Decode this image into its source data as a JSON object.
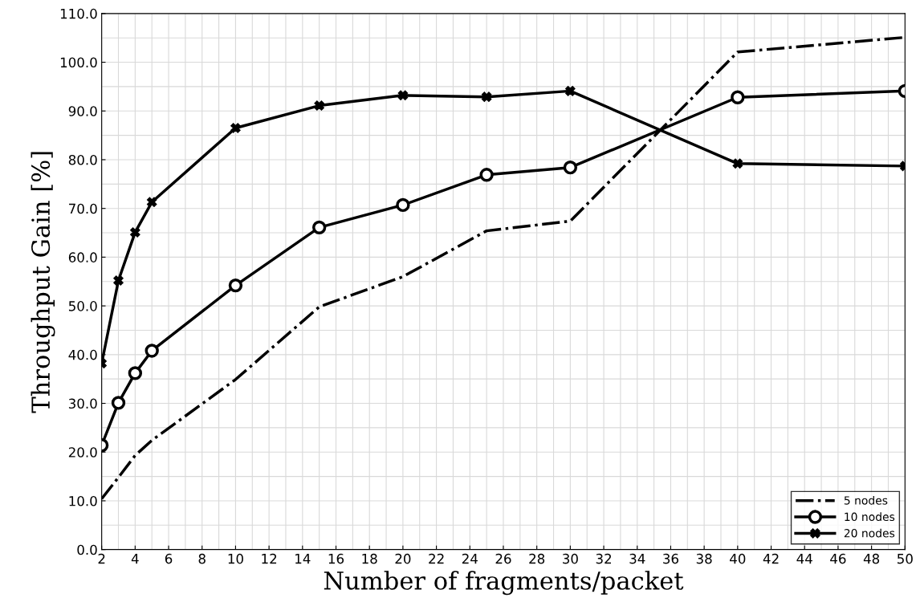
{
  "chart_data": {
    "type": "line",
    "xlabel": "Number of fragments/packet",
    "ylabel": "Throughput Gain [%]",
    "x": [
      2,
      3,
      4,
      5,
      10,
      15,
      20,
      25,
      30,
      40,
      50
    ],
    "series": [
      {
        "name": "5 nodes",
        "color": "#000000",
        "line_style": "dashdot",
        "marker": "none",
        "values": [
          10.4,
          14.8,
          19.3,
          22.4,
          34.9,
          49.8,
          56.0,
          65.4,
          67.4,
          102.1,
          105.1
        ]
      },
      {
        "name": "10 nodes",
        "color": "#000000",
        "line_style": "solid",
        "marker": "circle",
        "values": [
          21.4,
          30.1,
          36.2,
          40.8,
          54.2,
          66.1,
          70.7,
          76.9,
          78.4,
          92.8,
          94.1
        ]
      },
      {
        "name": "20 nodes",
        "color": "#000000",
        "line_style": "solid",
        "marker": "cross",
        "values": [
          38.2,
          55.2,
          65.1,
          71.3,
          86.5,
          91.1,
          93.2,
          92.9,
          94.1,
          79.2,
          78.7
        ]
      }
    ],
    "xlim": [
      2,
      50
    ],
    "xticks": [
      2,
      4,
      6,
      8,
      10,
      12,
      14,
      16,
      18,
      20,
      22,
      24,
      26,
      28,
      30,
      32,
      34,
      36,
      38,
      40,
      42,
      44,
      46,
      48,
      50
    ],
    "ylim": [
      0,
      110
    ],
    "yticks": [
      {
        "value": 0,
        "label": "0.0"
      },
      {
        "value": 10,
        "label": "10.0"
      },
      {
        "value": 20,
        "label": "20.0"
      },
      {
        "value": 30,
        "label": "30.0"
      },
      {
        "value": 40,
        "label": "40.0"
      },
      {
        "value": 50,
        "label": "50.0"
      },
      {
        "value": 60,
        "label": "60.0"
      },
      {
        "value": 70,
        "label": "70.0"
      },
      {
        "value": 80,
        "label": "80.0"
      },
      {
        "value": 90,
        "label": "90.0"
      },
      {
        "value": 100,
        "label": "100.0"
      },
      {
        "value": 110,
        "label": "110.0"
      }
    ],
    "grid": true,
    "legend": "bottom right"
  }
}
